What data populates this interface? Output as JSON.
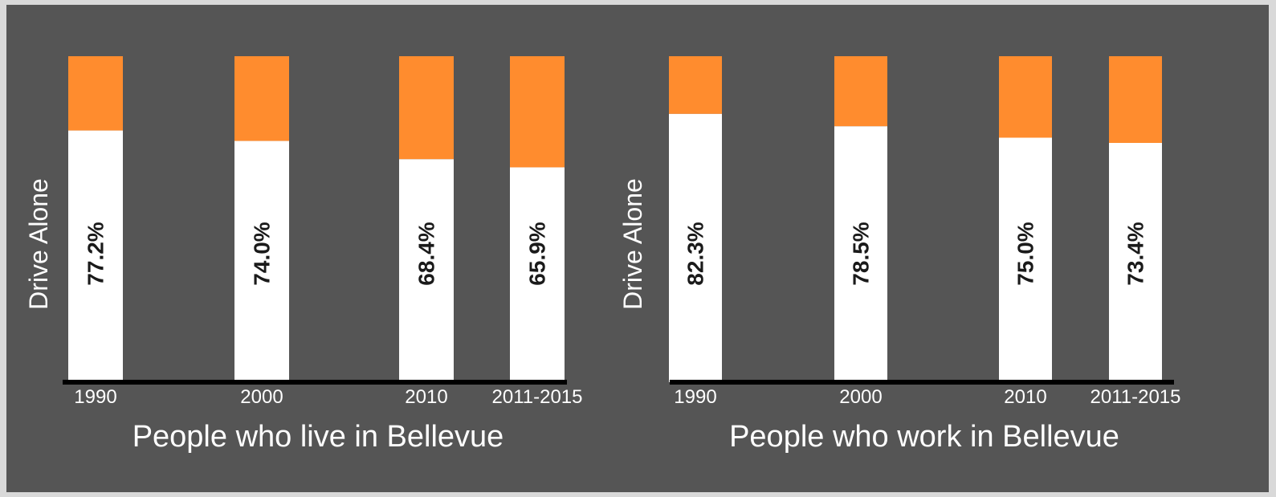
{
  "colors": {
    "background": "#555555",
    "drive_alone": "#ffffff",
    "other": "#ff8c2e",
    "axis": "#000000",
    "text": "#ffffff",
    "value_label": "#1a1a1a"
  },
  "chart_data": [
    {
      "type": "bar",
      "stacked": true,
      "title": "",
      "caption": "People who live in Bellevue",
      "ylabel": "Drive Alone",
      "xlabel": "",
      "categories": [
        "1990",
        "2000",
        "2010",
        "2011-2015"
      ],
      "series": [
        {
          "name": "Drive Alone",
          "values": [
            77.2,
            74.0,
            68.4,
            65.9
          ],
          "labels": [
            "77.2%",
            "74.0%",
            "68.4%",
            "65.9%"
          ]
        },
        {
          "values": [
            22.8,
            26.0,
            31.6,
            34.1
          ]
        }
      ],
      "ylim": [
        0,
        100
      ],
      "grid": false
    },
    {
      "type": "bar",
      "stacked": true,
      "title": "",
      "caption": "People who work in Bellevue",
      "ylabel": "Drive Alone",
      "xlabel": "",
      "categories": [
        "1990",
        "2000",
        "2010",
        "2011-2015"
      ],
      "series": [
        {
          "name": "Drive Alone",
          "values": [
            82.3,
            78.5,
            75.0,
            73.4
          ],
          "labels": [
            "82.3%",
            "78.5%",
            "75.0%",
            "73.4%"
          ]
        },
        {
          "values": [
            17.7,
            21.5,
            25.0,
            26.6
          ]
        }
      ],
      "ylim": [
        0,
        100
      ],
      "grid": false
    }
  ]
}
